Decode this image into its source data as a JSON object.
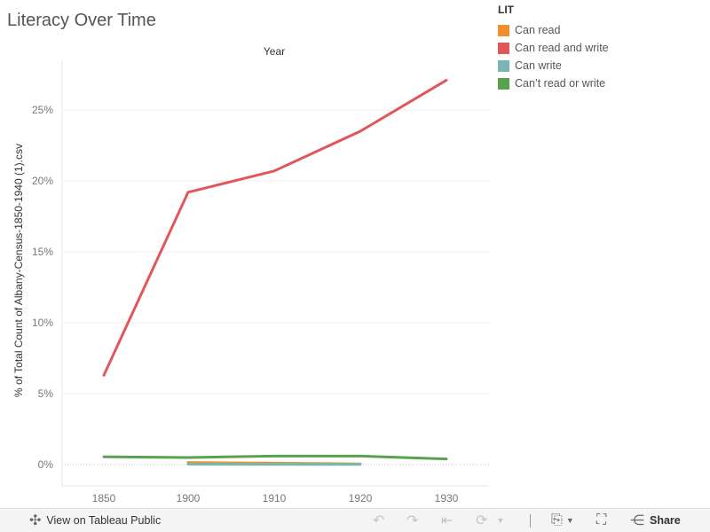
{
  "title": "Literacy Over Time",
  "legend": {
    "title": "LIT",
    "items": [
      {
        "label": "Can read",
        "color": "#f28e2b"
      },
      {
        "label": "Can read and write",
        "color": "#e15759"
      },
      {
        "label": "Can write",
        "color": "#76b7b2"
      },
      {
        "label": "Can’t read or write",
        "color": "#59a14f"
      }
    ]
  },
  "chart_data": {
    "type": "line",
    "title": "Literacy Over Time",
    "xlabel": "Year",
    "ylabel": "% of Total Count of Albany-Census-1850-1940 (1).csv",
    "x": [
      1850,
      1900,
      1910,
      1920,
      1930
    ],
    "xlim": [
      1850,
      1930
    ],
    "ylim": [
      0,
      27.5
    ],
    "y_ticks": [
      0,
      5,
      10,
      15,
      20,
      25
    ],
    "y_tick_labels": [
      "0%",
      "5%",
      "10%",
      "15%",
      "20%",
      "25%"
    ],
    "legend_position": "top-right",
    "grid": true,
    "series": [
      {
        "name": "Can read and write",
        "color": "#e15759",
        "values": [
          6.3,
          19.2,
          20.7,
          23.5,
          27.1
        ]
      },
      {
        "name": "Can’t read or write",
        "color": "#59a14f",
        "values": [
          0.55,
          0.5,
          0.6,
          0.6,
          0.4
        ]
      },
      {
        "name": "Can read",
        "color": "#f28e2b",
        "values": [
          null,
          0.15,
          0.1,
          0.05,
          null
        ]
      },
      {
        "name": "Can write",
        "color": "#76b7b2",
        "values": [
          null,
          0.03,
          0.02,
          0.01,
          null
        ]
      }
    ]
  },
  "toolbar": {
    "view_label": "View on Tableau Public",
    "share_label": "Share"
  },
  "icons": {
    "tableau": "tableau-logo-icon",
    "undo": "undo-icon",
    "redo": "redo-icon",
    "revert": "revert-icon",
    "refresh": "refresh-icon",
    "download": "download-icon",
    "fullscreen": "fullscreen-icon",
    "share": "share-icon"
  }
}
